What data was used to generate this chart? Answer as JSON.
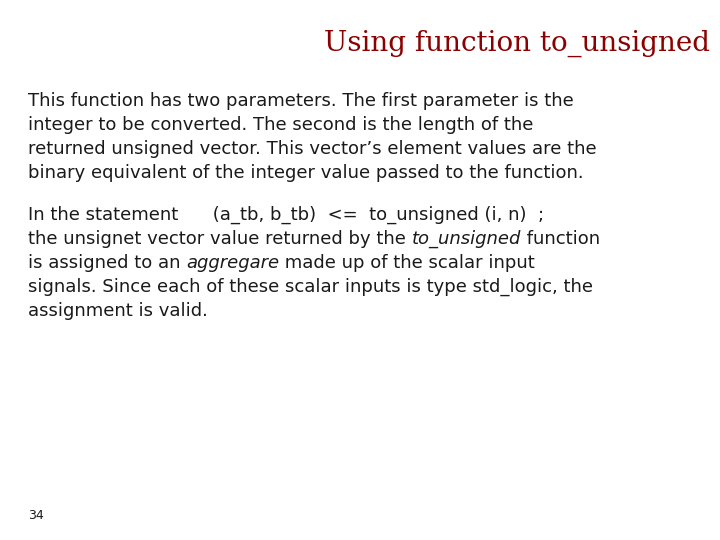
{
  "title": "Using function to_unsigned",
  "title_color": "#8B0000",
  "title_fontsize": 20,
  "title_font": "DejaVu Serif",
  "background_color": "#ffffff",
  "body_fontsize": 13.0,
  "body_font": "DejaVu Sans",
  "paragraph1_lines": [
    "This function has two parameters. The first parameter is the",
    "integer to be converted. The second is the length of the",
    "returned unsigned vector. This vector’s element values are the",
    "binary equivalent of the integer value passed to the function."
  ],
  "p2_line1": "In the statement      (a_tb, b_tb)  <=  to_unsigned (i, n)  ;",
  "p2_line2_plain1": "the unsignet vector value returned by the ",
  "p2_line2_italic": "to_unsigned",
  "p2_line2_plain2": " function",
  "p2_line3_plain1": "is assigned to an ",
  "p2_line3_italic": "aggregare",
  "p2_line3_plain2": " made up of the scalar input",
  "p2_line4": "signals. Since each of these scalar inputs is type std_logic, the",
  "p2_line5": "assignment is valid.",
  "page_number": "34",
  "page_number_fontsize": 9,
  "text_color": "#1a1a1a"
}
